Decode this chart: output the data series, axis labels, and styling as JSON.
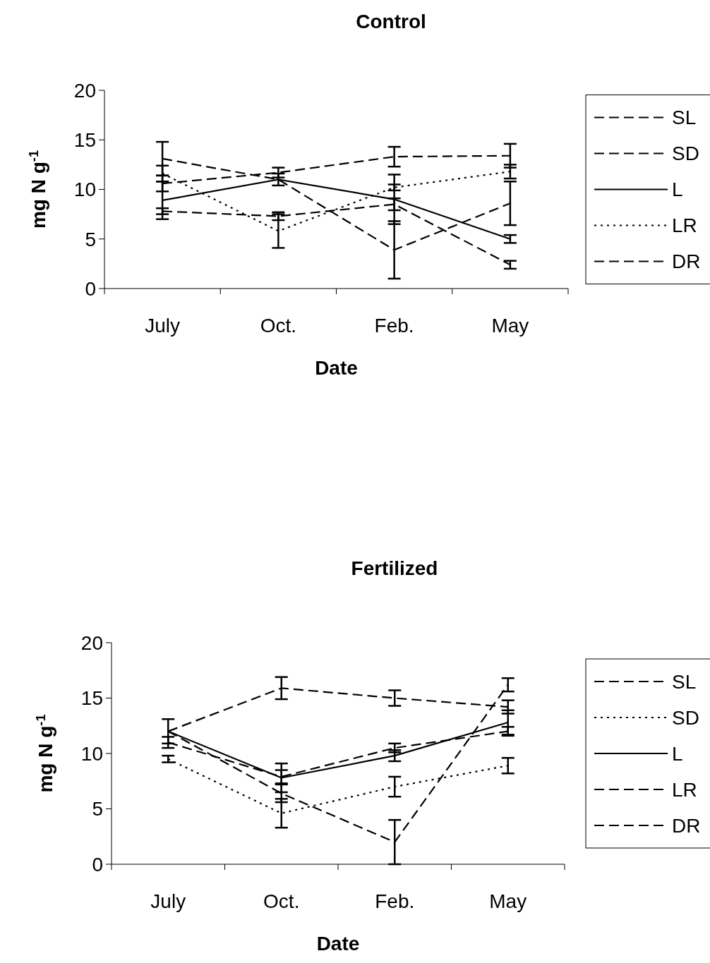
{
  "chart_data": [
    {
      "type": "line",
      "title": "Control",
      "xlabel": "Date",
      "ylabel": "mg N g$^{-1}$",
      "categories": [
        "July",
        "Oct.",
        "Feb.",
        "May"
      ],
      "ylim": [
        0,
        20
      ],
      "yticks": [
        0,
        5,
        10,
        15,
        20
      ],
      "legend": "right",
      "marker": "none",
      "grid": false,
      "series": [
        {
          "name": "SL",
          "color": "#000000",
          "line_style": "dashed",
          "values": [
            10.6,
            11.7,
            13.3,
            13.4
          ],
          "errors": [
            0.8,
            0.5,
            1.0,
            1.2
          ]
        },
        {
          "name": "SD",
          "color": "#000000",
          "line_style": "dashed",
          "values": [
            7.8,
            7.3,
            8.5,
            2.4
          ],
          "errors": [
            0.3,
            0.4,
            0.6,
            0.4
          ]
        },
        {
          "name": "L",
          "color": "#000000",
          "line_style": "solid",
          "values": [
            8.9,
            11.0,
            9.0,
            5.0
          ],
          "errors": [
            1.9,
            0.6,
            2.5,
            0.4
          ]
        },
        {
          "name": "LR",
          "color": "#000000",
          "line_style": "dotted",
          "values": [
            11.6,
            5.8,
            10.2,
            11.8
          ],
          "errors": [
            0.8,
            1.7,
            0.3,
            0.7
          ]
        },
        {
          "name": "DR",
          "color": "#000000",
          "line_style": "dashed",
          "values": [
            13.1,
            11.0,
            3.9,
            8.6
          ],
          "errors": [
            1.7,
            null,
            2.9,
            2.2
          ]
        }
      ]
    },
    {
      "type": "line",
      "title": "Fertilized",
      "xlabel": "Date",
      "ylabel": "mg N g$^{-1}$",
      "categories": [
        "July",
        "Oct.",
        "Feb.",
        "May"
      ],
      "ylim": [
        0,
        20
      ],
      "yticks": [
        0,
        5,
        10,
        15,
        20
      ],
      "legend": "right",
      "marker": "none",
      "grid": false,
      "series": [
        {
          "name": "SL",
          "color": "#000000",
          "line_style": "dashed",
          "values": [
            12.0,
            15.9,
            15.0,
            14.2
          ],
          "errors": [
            null,
            1.0,
            0.7,
            0.6
          ]
        },
        {
          "name": "SD",
          "color": "#000000",
          "line_style": "dotted",
          "values": [
            9.5,
            4.6,
            7.0,
            8.9
          ],
          "errors": [
            0.3,
            1.3,
            0.9,
            0.7
          ]
        },
        {
          "name": "L",
          "color": "#000000",
          "line_style": "solid",
          "values": [
            12.0,
            7.8,
            9.8,
            12.8
          ],
          "errors": [
            null,
            1.3,
            0.5,
            1.1
          ]
        },
        {
          "name": "LR",
          "color": "#000000",
          "line_style": "dashed",
          "values": [
            11.0,
            7.9,
            10.5,
            12.0
          ],
          "errors": [
            0.5,
            0.6,
            0.4,
            0.4
          ]
        },
        {
          "name": "DR",
          "color": "#000000",
          "line_style": "dashed",
          "values": [
            12.0,
            6.4,
            2.0,
            16.2
          ],
          "errors": [
            1.1,
            0.8,
            2.0,
            0.6
          ]
        }
      ]
    }
  ]
}
